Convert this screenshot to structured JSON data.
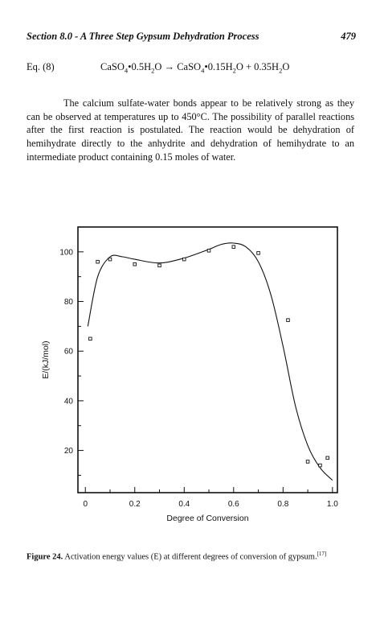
{
  "header": {
    "title": "Section 8.0 - A Three Step Gypsum Dehydration Process",
    "page_number": "479"
  },
  "equation": {
    "label": "Eq. (8)",
    "lhs_prefix": "CaSO",
    "lhs_sub1": "4",
    "lhs_mid": "•0.5H",
    "lhs_sub2": "2",
    "lhs_end": "O",
    "arrow": "→",
    "rhs_prefix": "CaSO",
    "rhs_sub1": "4",
    "rhs_mid": "•0.15H",
    "rhs_sub2": "2",
    "rhs_mid2": "O + 0.35H",
    "rhs_sub3": "2",
    "rhs_end": "O"
  },
  "paragraph": "The calcium sulfate-water bonds appear to be relatively strong as they can be observed at temperatures up to 450°C. The possibility of parallel reactions after the first reaction is postulated. The reaction would be dehydration of hemihydrate directly to the anhydrite and dehydration of hemihydrate to an intermediate product containing 0.15 moles of water.",
  "caption": {
    "label": "Figure 24.",
    "text": " Activation energy values (E) at different degrees of conversion of gypsum.",
    "ref": "[17]"
  },
  "chart_data": {
    "type": "scatter",
    "title": "",
    "xlabel": "Degree of Conversion",
    "ylabel": "E/(kJ/mol)",
    "xlim": [
      -0.03,
      1.02
    ],
    "ylim": [
      3,
      110
    ],
    "x_ticks": [
      0,
      0.2,
      0.4,
      0.6,
      0.8,
      1.0
    ],
    "x_tick_labels": [
      "0",
      "0.2",
      "0.4",
      "0.6",
      "0.8",
      "1.0"
    ],
    "y_ticks": [
      20,
      40,
      60,
      80,
      100
    ],
    "y_tick_labels": [
      "20",
      "40",
      "60",
      "80",
      "100"
    ],
    "grid": false,
    "series": [
      {
        "kind": "points",
        "marker": "open-square",
        "x": [
          0.02,
          0.05,
          0.1,
          0.2,
          0.3,
          0.4,
          0.5,
          0.6,
          0.7,
          0.82,
          0.9,
          0.95,
          0.98
        ],
        "y": [
          65,
          96,
          97,
          95,
          94.5,
          97,
          100.5,
          102,
          99.5,
          72.5,
          15.5,
          14,
          17
        ]
      },
      {
        "kind": "fit-curve",
        "x": [
          0.01,
          0.05,
          0.1,
          0.15,
          0.2,
          0.3,
          0.4,
          0.5,
          0.55,
          0.6,
          0.65,
          0.7,
          0.75,
          0.8,
          0.85,
          0.9,
          0.95,
          1.0
        ],
        "y": [
          70,
          90,
          98,
          98,
          97,
          95.5,
          97.5,
          101,
          103,
          103.5,
          102,
          96,
          83,
          62,
          38,
          22,
          13,
          8
        ]
      }
    ]
  }
}
